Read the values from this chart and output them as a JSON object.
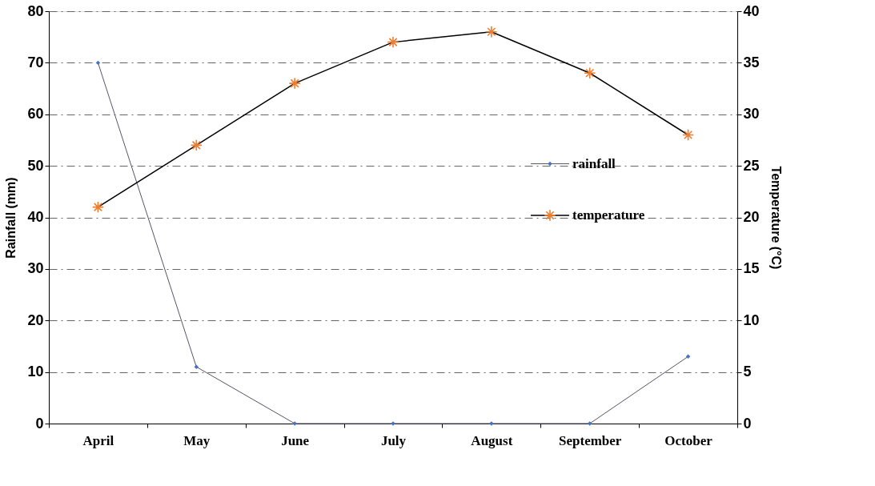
{
  "chart_data": {
    "type": "line",
    "categories": [
      "April",
      "May",
      "June",
      "July",
      "August",
      "September",
      "October"
    ],
    "ylabel": "Rainfall (mm)",
    "y2label": "Temperature (°C)",
    "ylim": [
      0,
      80
    ],
    "yticks": [
      0,
      10,
      20,
      30,
      40,
      50,
      60,
      70,
      80
    ],
    "y2lim": [
      0,
      40
    ],
    "y2ticks": [
      0,
      5,
      10,
      15,
      20,
      25,
      30,
      35,
      40
    ],
    "grid": "y",
    "legend": "right",
    "line_style": "solid",
    "series": [
      {
        "name": "rainfall",
        "color": "#4472c4",
        "marker": "diamond",
        "values": [
          70,
          11,
          0,
          0,
          0,
          0,
          13
        ]
      },
      {
        "name": "temperature",
        "color": "#ed7d31",
        "marker": "star",
        "axis": "y2",
        "values": [
          21,
          27,
          33,
          37,
          38,
          34,
          28
        ]
      }
    ]
  }
}
